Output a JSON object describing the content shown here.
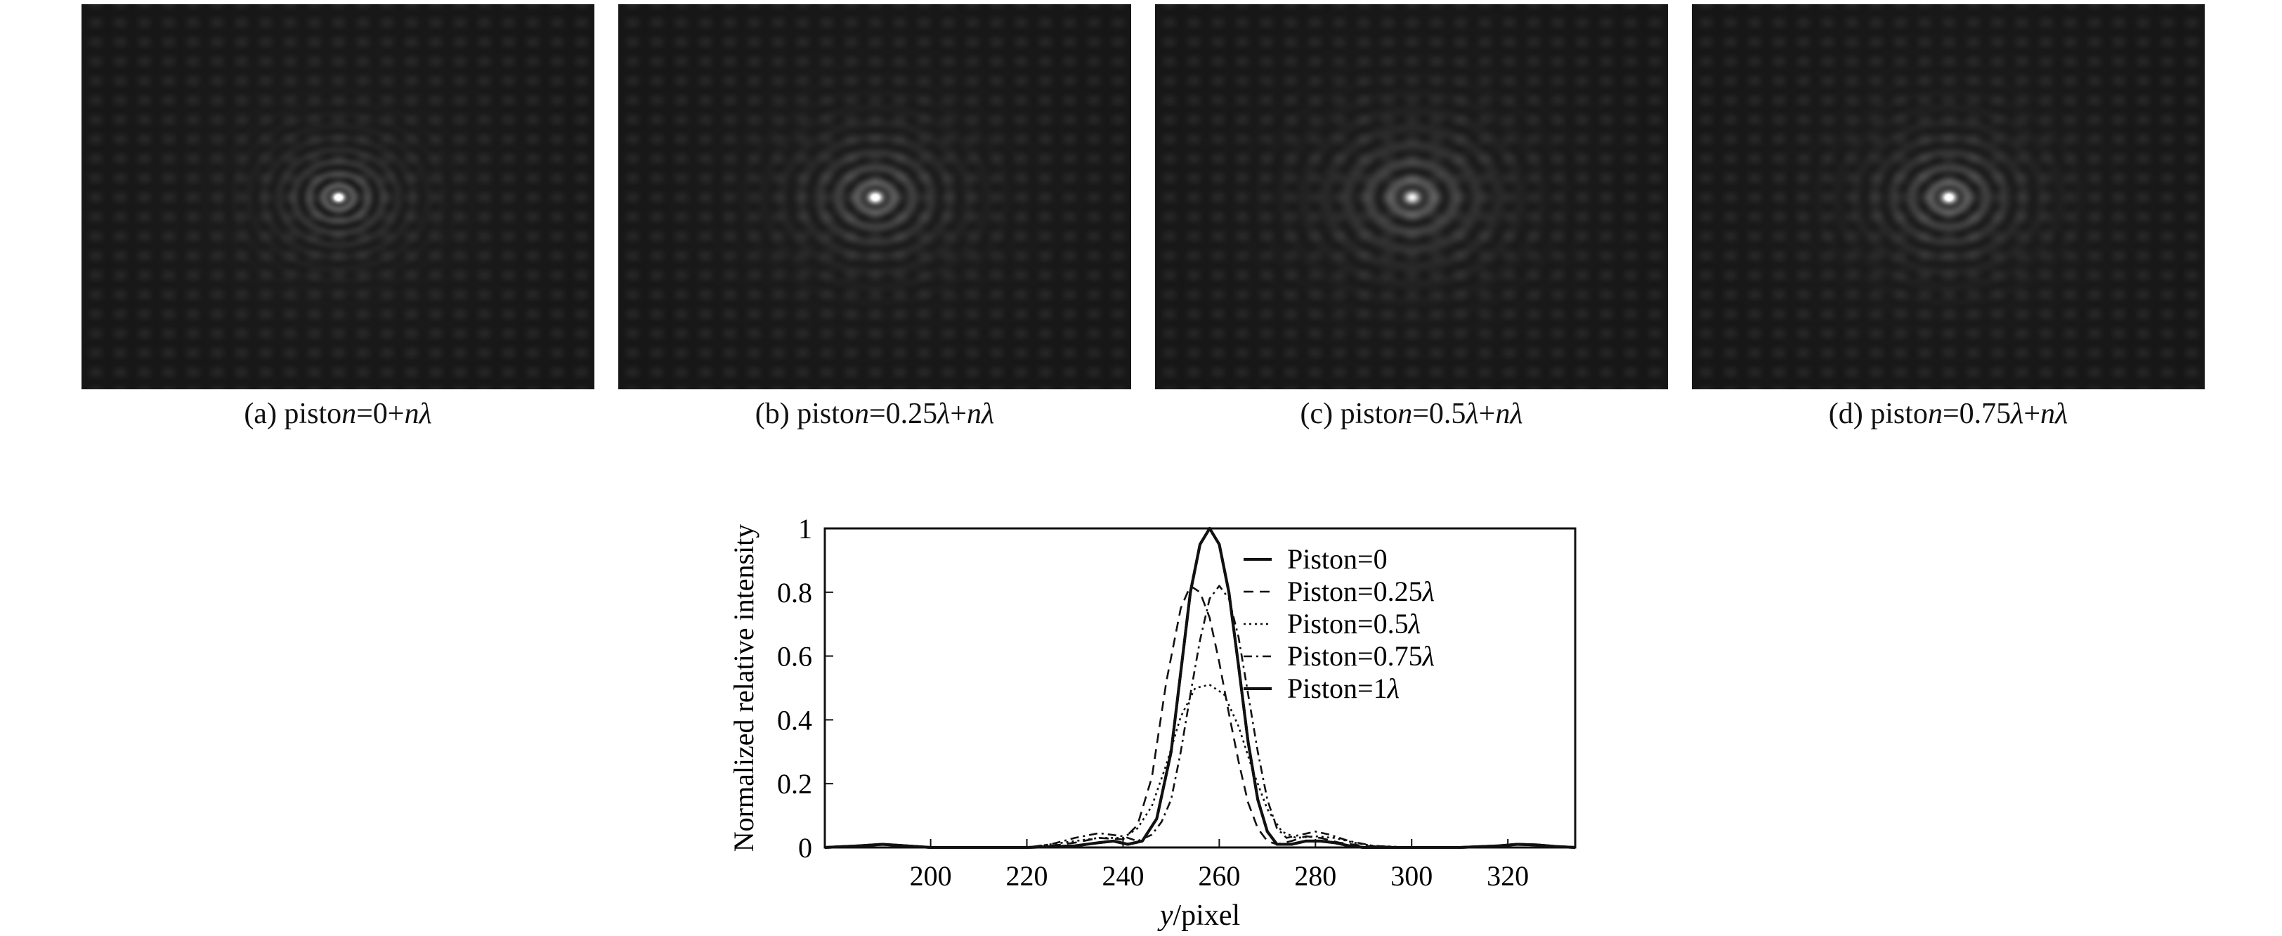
{
  "panels": [
    {
      "caption": "(a) piston=0+nλ",
      "peak": 1.0,
      "ring_scale": 1.0
    },
    {
      "caption": "(b) piston=0.25λ+nλ",
      "peak": 0.82,
      "ring_scale": 1.25
    },
    {
      "caption": "(c) piston=0.5λ+nλ",
      "peak": 0.51,
      "ring_scale": 1.45
    },
    {
      "caption": "(d) piston=0.75λ+nλ",
      "peak": 0.82,
      "ring_scale": 1.25
    }
  ],
  "chart_data": {
    "type": "line",
    "title": "",
    "xlabel": "y/pixel",
    "ylabel": "Normalized relative intensity",
    "xlim": [
      178,
      334
    ],
    "ylim": [
      0,
      1
    ],
    "xticks": [
      200,
      220,
      240,
      260,
      280,
      300,
      320
    ],
    "yticks": [
      0,
      0.2,
      0.4,
      0.6,
      0.8,
      1
    ],
    "ytick_labels": [
      "0",
      "0.2",
      "0.4",
      "0.6",
      "0.8",
      "1"
    ],
    "grid": false,
    "legend_position": "top-right",
    "series": [
      {
        "name": "Piston=0",
        "style": "solid",
        "x": [
          178,
          185,
          190,
          195,
          200,
          210,
          220,
          230,
          235,
          238,
          241,
          244,
          247,
          250,
          252,
          254,
          256,
          258,
          260,
          262,
          264,
          266,
          268,
          270,
          272,
          275,
          278,
          281,
          284,
          287,
          290,
          300,
          310,
          318,
          322,
          326,
          330,
          334
        ],
        "y": [
          0,
          0.005,
          0.01,
          0.005,
          0,
          0,
          0,
          0.005,
          0.015,
          0.02,
          0.01,
          0.02,
          0.09,
          0.3,
          0.55,
          0.8,
          0.95,
          1.0,
          0.95,
          0.8,
          0.57,
          0.33,
          0.15,
          0.05,
          0.01,
          0.01,
          0.02,
          0.02,
          0.015,
          0.005,
          0,
          0,
          0,
          0.005,
          0.01,
          0.008,
          0.003,
          0
        ]
      },
      {
        "name": "Piston=0.25λ",
        "style": "dash",
        "x": [
          178,
          200,
          220,
          225,
          230,
          235,
          240,
          243,
          246,
          249,
          252,
          254,
          256,
          258,
          260,
          262,
          264,
          266,
          268,
          270,
          272,
          275,
          278,
          281,
          285,
          290,
          300,
          320,
          334
        ],
        "y": [
          0,
          0,
          0,
          0.005,
          0.015,
          0.03,
          0.025,
          0.07,
          0.22,
          0.52,
          0.75,
          0.82,
          0.8,
          0.72,
          0.58,
          0.42,
          0.27,
          0.14,
          0.06,
          0.02,
          0.01,
          0.02,
          0.035,
          0.03,
          0.015,
          0.005,
          0,
          0,
          0
        ]
      },
      {
        "name": "Piston=0.5λ",
        "style": "dot",
        "x": [
          178,
          200,
          220,
          225,
          230,
          235,
          240,
          243,
          246,
          249,
          252,
          255,
          258,
          261,
          264,
          267,
          270,
          273,
          276,
          280,
          284,
          288,
          292,
          300,
          320,
          334
        ],
        "y": [
          0,
          0,
          0,
          0.01,
          0.02,
          0.03,
          0.03,
          0.06,
          0.13,
          0.26,
          0.41,
          0.5,
          0.51,
          0.48,
          0.38,
          0.24,
          0.12,
          0.05,
          0.03,
          0.035,
          0.03,
          0.015,
          0.005,
          0,
          0,
          0
        ]
      },
      {
        "name": "Piston=0.75λ",
        "style": "dashdot",
        "x": [
          178,
          200,
          220,
          225,
          230,
          235,
          240,
          243,
          246,
          248,
          250,
          252,
          254,
          256,
          258,
          260,
          262,
          264,
          266,
          268,
          270,
          272,
          274,
          277,
          280,
          283,
          287,
          292,
          300,
          320,
          334
        ],
        "y": [
          0,
          0,
          0,
          0.01,
          0.03,
          0.045,
          0.035,
          0.02,
          0.04,
          0.08,
          0.15,
          0.3,
          0.48,
          0.65,
          0.78,
          0.82,
          0.78,
          0.66,
          0.48,
          0.3,
          0.15,
          0.06,
          0.03,
          0.04,
          0.05,
          0.04,
          0.02,
          0.005,
          0,
          0,
          0
        ]
      },
      {
        "name": "Piston=1λ",
        "style": "solid",
        "x": [
          178,
          185,
          190,
          195,
          200,
          210,
          220,
          230,
          235,
          238,
          241,
          244,
          247,
          250,
          252,
          254,
          256,
          258,
          260,
          262,
          264,
          266,
          268,
          270,
          272,
          275,
          278,
          281,
          284,
          287,
          290,
          300,
          310,
          318,
          322,
          326,
          330,
          334
        ],
        "y": [
          0,
          0.005,
          0.01,
          0.005,
          0,
          0,
          0,
          0.005,
          0.015,
          0.02,
          0.01,
          0.02,
          0.09,
          0.3,
          0.55,
          0.8,
          0.95,
          1.0,
          0.95,
          0.8,
          0.57,
          0.33,
          0.15,
          0.05,
          0.01,
          0.01,
          0.02,
          0.02,
          0.015,
          0.005,
          0,
          0,
          0,
          0.005,
          0.01,
          0.008,
          0.003,
          0
        ]
      }
    ]
  }
}
